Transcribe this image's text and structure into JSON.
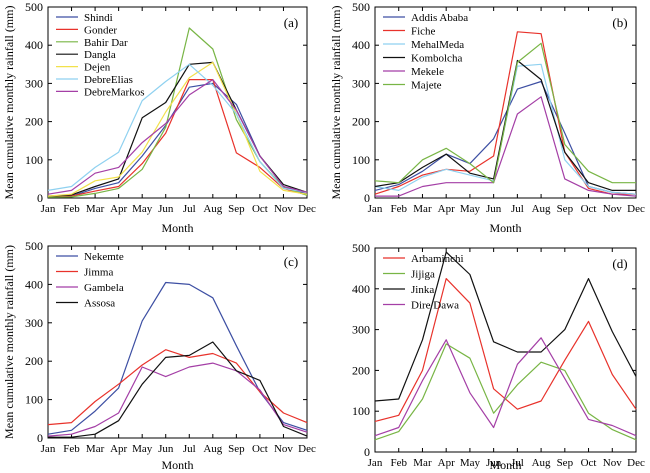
{
  "chart_data": [
    {
      "type": "line",
      "panel_label": "(a)",
      "ylabel": "Mean cumulative monthly rainfall (mm)",
      "xlabel": "Month",
      "categories": [
        "Jan",
        "Feb",
        "Mar",
        "Apr",
        "May",
        "Jun",
        "Jul",
        "Aug",
        "Sep",
        "Oct",
        "Nov",
        "Dec"
      ],
      "ylim": [
        0,
        500
      ],
      "yticks": [
        "0",
        "100",
        "200",
        "300",
        "400",
        "500"
      ],
      "legend_position": "top-left",
      "series": [
        {
          "name": "Shindi",
          "color": "#3d4fa3",
          "values": [
            5,
            5,
            25,
            40,
            110,
            190,
            290,
            300,
            245,
            110,
            30,
            10
          ]
        },
        {
          "name": "Gonder",
          "color": "#e8322b",
          "values": [
            3,
            5,
            18,
            30,
            90,
            170,
            310,
            310,
            118,
            80,
            25,
            8
          ]
        },
        {
          "name": "Bahir Dar",
          "color": "#78b545",
          "values": [
            2,
            3,
            12,
            25,
            75,
            185,
            445,
            390,
            205,
            95,
            28,
            7
          ]
        },
        {
          "name": "Dangla",
          "color": "#111111",
          "values": [
            5,
            8,
            30,
            50,
            210,
            250,
            350,
            355,
            230,
            110,
            35,
            15
          ]
        },
        {
          "name": "Dejen",
          "color": "#f2e14c",
          "values": [
            5,
            10,
            45,
            55,
            120,
            225,
            315,
            355,
            220,
            70,
            20,
            10
          ]
        },
        {
          "name": "DebreElias",
          "color": "#8fd1f0",
          "values": [
            20,
            30,
            80,
            120,
            255,
            305,
            350,
            295,
            220,
            95,
            25,
            15
          ]
        },
        {
          "name": "DebreMarkos",
          "color": "#a43fa6",
          "values": [
            10,
            20,
            65,
            80,
            145,
            195,
            270,
            310,
            230,
            110,
            30,
            15
          ]
        }
      ]
    },
    {
      "type": "line",
      "panel_label": "(b)",
      "ylabel": "Mean cumulative monthly rainfall (mm)",
      "xlabel": "Month",
      "categories": [
        "Jan",
        "Feb",
        "Mar",
        "Apr",
        "May",
        "Jun",
        "Jul",
        "Aug",
        "Sep",
        "Oct",
        "Nov",
        "Dec"
      ],
      "ylim": [
        0,
        500
      ],
      "yticks": [
        "0",
        "100",
        "200",
        "300",
        "400",
        "500"
      ],
      "legend_position": "top-left",
      "series": [
        {
          "name": "Addis Ababa",
          "color": "#3d4fa3",
          "values": [
            20,
            35,
            70,
            115,
            90,
            155,
            285,
            305,
            170,
            30,
            15,
            10
          ]
        },
        {
          "name": "Fiche",
          "color": "#e8322b",
          "values": [
            10,
            30,
            60,
            75,
            70,
            110,
            435,
            430,
            120,
            25,
            10,
            10
          ]
        },
        {
          "name": "MehalMeda",
          "color": "#8fd1f0",
          "values": [
            30,
            20,
            55,
            75,
            60,
            45,
            345,
            350,
            100,
            30,
            15,
            10
          ]
        },
        {
          "name": "Kombolcha",
          "color": "#111111",
          "values": [
            30,
            40,
            80,
            115,
            65,
            50,
            360,
            310,
            120,
            40,
            20,
            20
          ]
        },
        {
          "name": "Mekele",
          "color": "#a43fa6",
          "values": [
            5,
            5,
            30,
            40,
            40,
            40,
            220,
            265,
            50,
            20,
            10,
            5
          ]
        },
        {
          "name": "Majete",
          "color": "#78b545",
          "values": [
            45,
            40,
            100,
            130,
            90,
            40,
            355,
            405,
            140,
            70,
            40,
            40
          ]
        }
      ]
    },
    {
      "type": "line",
      "panel_label": "(c)",
      "ylabel": "Mean cumulative monthly rainfall (mm)",
      "xlabel": "Month",
      "categories": [
        "Jan",
        "Feb",
        "Mar",
        "Apr",
        "May",
        "Jun",
        "Jul",
        "Aug",
        "Sep",
        "Oct",
        "Nov",
        "Dec"
      ],
      "ylim": [
        0,
        500
      ],
      "yticks": [
        "0",
        "100",
        "200",
        "300",
        "400",
        "500"
      ],
      "legend_position": "top-left",
      "series": [
        {
          "name": "Nekemte",
          "color": "#3d4fa3",
          "values": [
            10,
            20,
            70,
            130,
            305,
            405,
            400,
            365,
            240,
            120,
            40,
            20
          ]
        },
        {
          "name": "Jimma",
          "color": "#e8322b",
          "values": [
            35,
            40,
            95,
            140,
            190,
            230,
            210,
            220,
            195,
            120,
            65,
            40
          ]
        },
        {
          "name": "Gambela",
          "color": "#a43fa6",
          "values": [
            5,
            10,
            30,
            65,
            185,
            160,
            185,
            195,
            175,
            125,
            35,
            15
          ]
        },
        {
          "name": "Assosa",
          "color": "#111111",
          "values": [
            2,
            2,
            10,
            45,
            140,
            210,
            215,
            250,
            175,
            150,
            30,
            5
          ]
        }
      ]
    },
    {
      "type": "line",
      "panel_label": "(d)",
      "ylabel": "",
      "xlabel": "Month",
      "categories": [
        "Jan",
        "Feb",
        "Mar",
        "Apr",
        "May",
        "Jun",
        "Jul",
        "Aug",
        "Sep",
        "Oct",
        "Nov",
        "Dec"
      ],
      "ylim": [
        0,
        500
      ],
      "yticks": [
        "0",
        "100",
        "200",
        "300",
        "400",
        "500"
      ],
      "legend_position": "top-left",
      "series": [
        {
          "name": "Arbaminchi",
          "color": "#e8322b",
          "values": [
            75,
            90,
            200,
            425,
            365,
            155,
            105,
            125,
            225,
            320,
            190,
            105
          ]
        },
        {
          "name": "Jijiga",
          "color": "#78b545",
          "values": [
            30,
            50,
            130,
            265,
            230,
            95,
            165,
            220,
            200,
            95,
            55,
            30
          ]
        },
        {
          "name": "Jinka",
          "color": "#111111",
          "values": [
            125,
            130,
            275,
            490,
            435,
            270,
            245,
            245,
            300,
            425,
            295,
            185
          ]
        },
        {
          "name": "Dire Dawa",
          "color": "#a43fa6",
          "values": [
            40,
            60,
            175,
            275,
            145,
            60,
            215,
            280,
            180,
            80,
            65,
            40
          ]
        }
      ]
    }
  ]
}
